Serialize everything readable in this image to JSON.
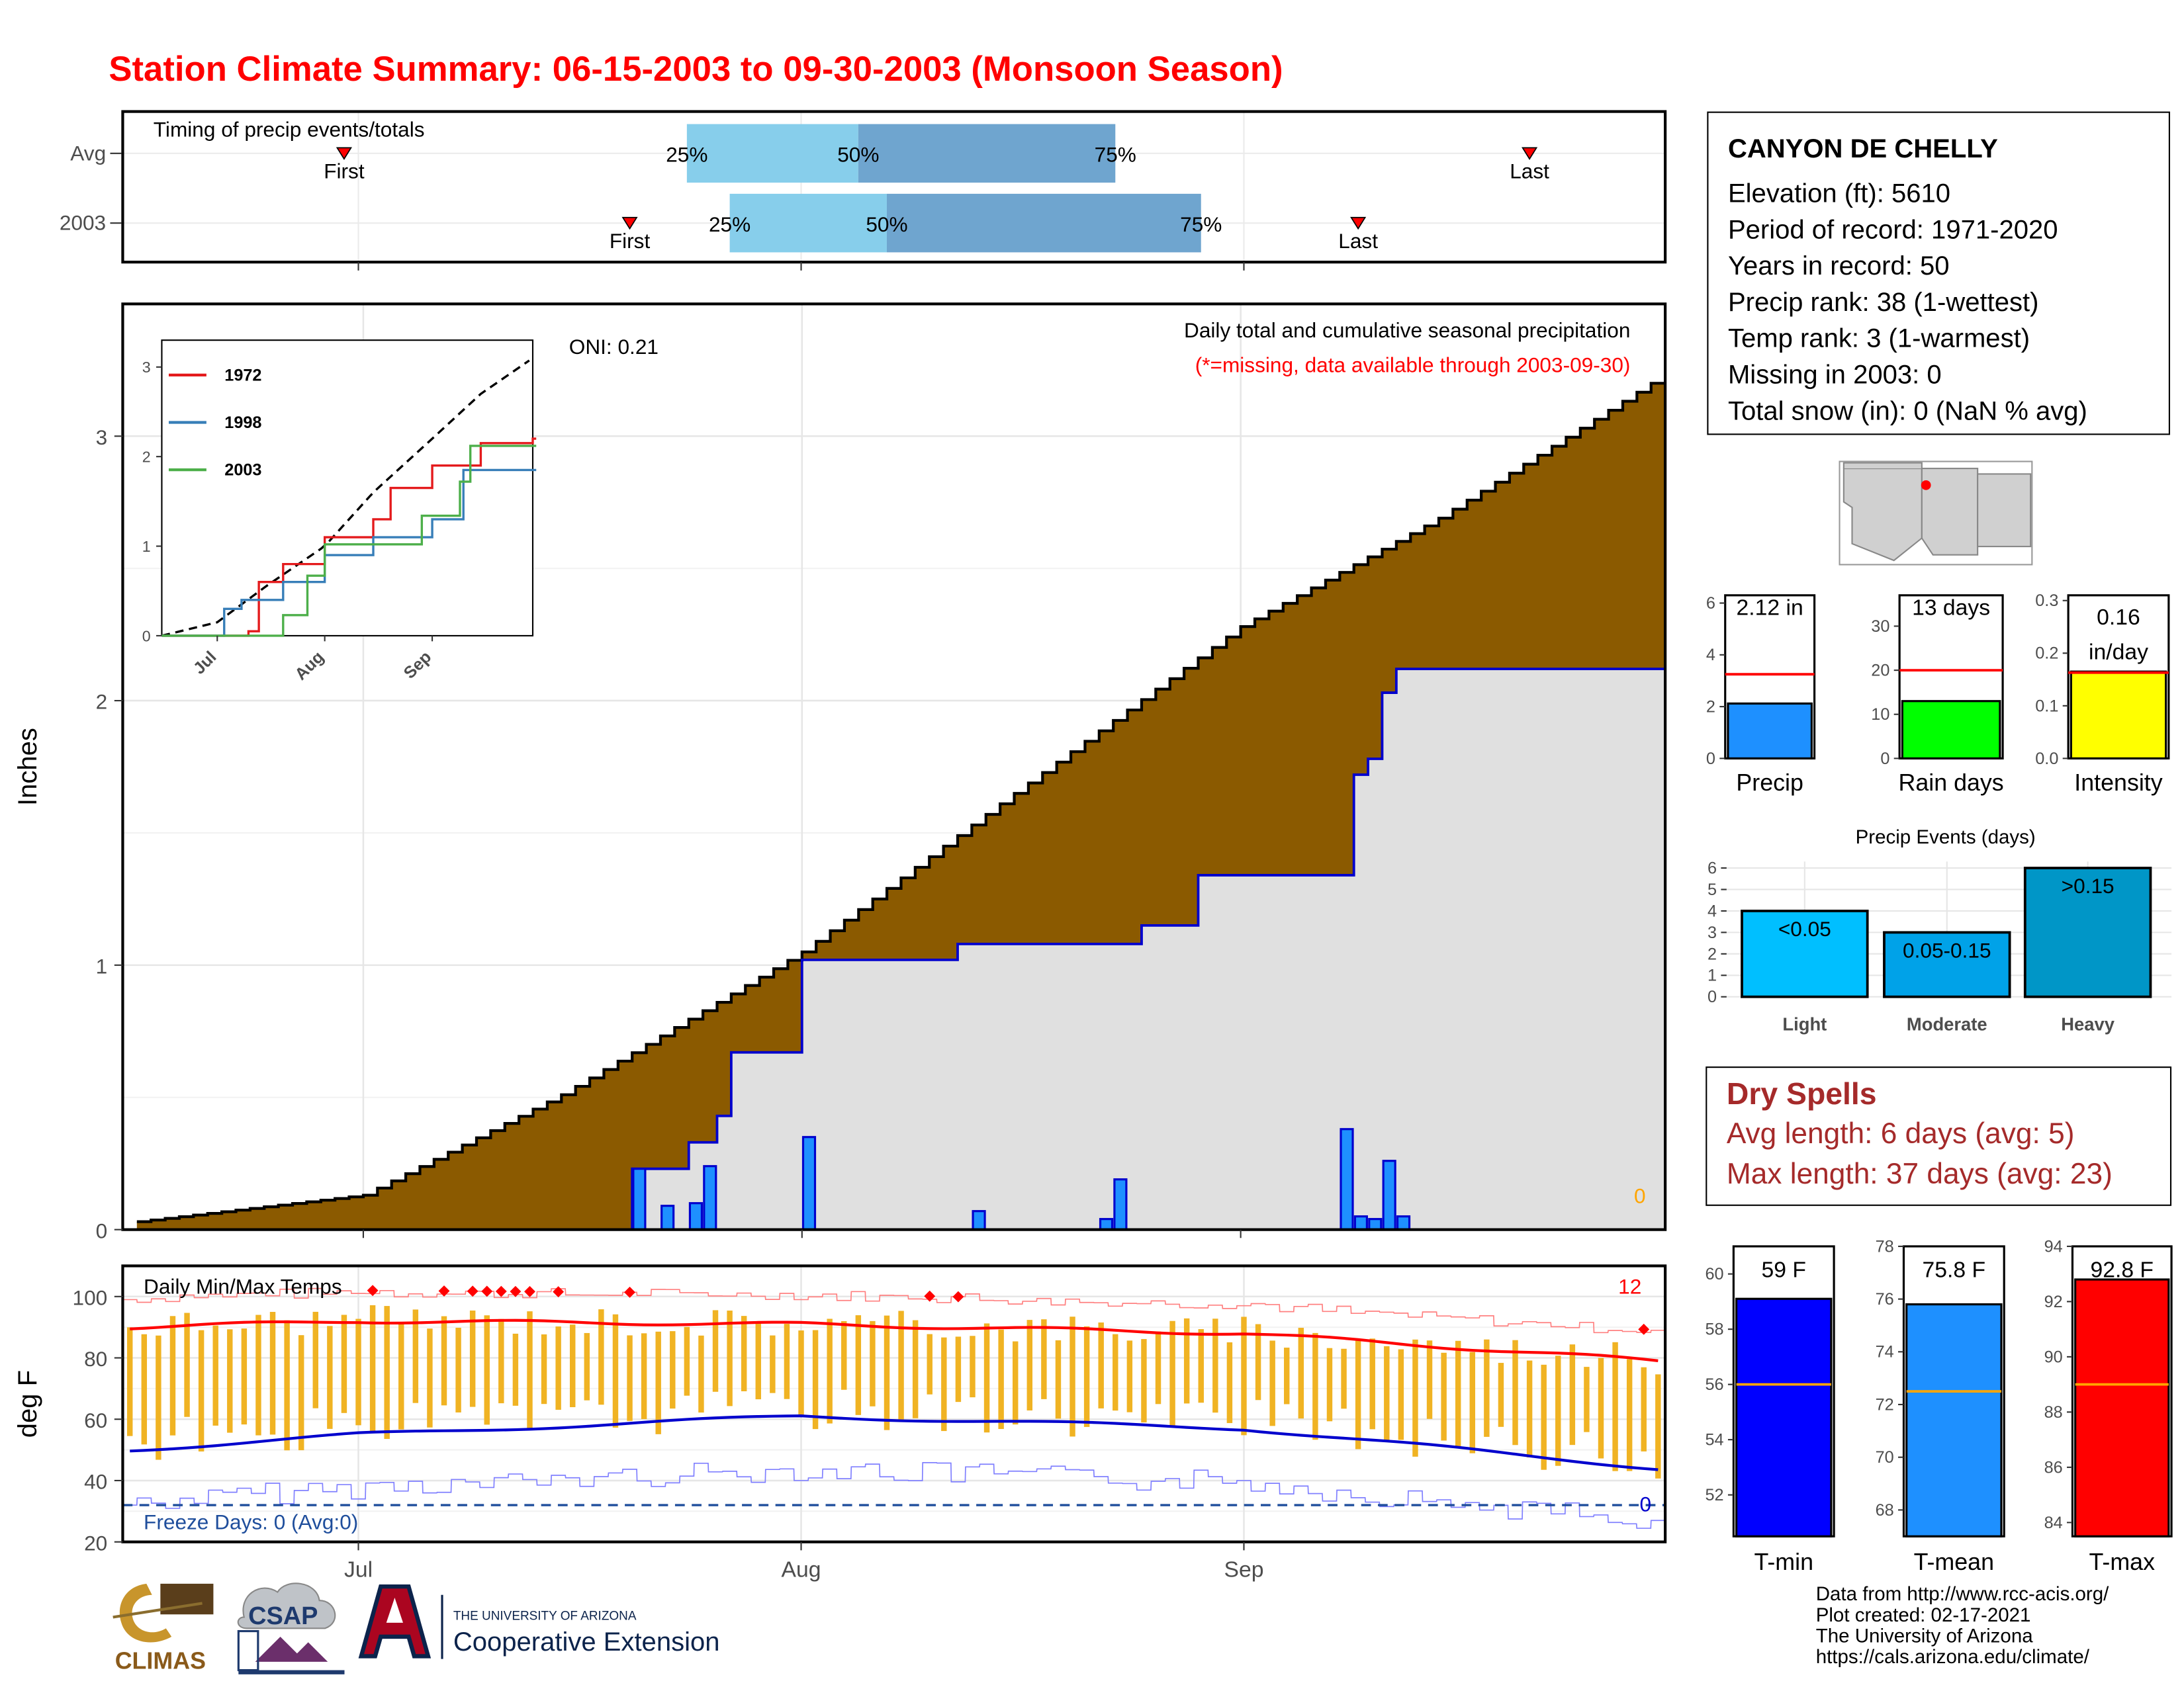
{
  "title": "Station Climate Summary: 06-15-2003 to 09-30-2003 (Monsoon Season)",
  "timing": {
    "label": "Timing of precip events/totals",
    "rows": [
      {
        "name": "Avg",
        "first": "06-30",
        "q25": "07-24",
        "q50": "08-05",
        "q75": "08-23",
        "last": "09-21"
      },
      {
        "name": "2003",
        "first": "07-20",
        "q25": "07-27",
        "q50": "08-07",
        "q75": "08-29",
        "last": "09-09"
      }
    ],
    "first_label": "First",
    "last_label": "Last",
    "q25_label": "25%",
    "q50_label": "50%",
    "q75_label": "75%",
    "colors": {
      "light": "#87ceeb",
      "dark": "#6fa5cf"
    }
  },
  "main": {
    "ylabel": "Inches",
    "oni": "ONI: 0.21",
    "caption": "Daily total and cumulative seasonal precipitation",
    "missing_note": "(*=missing, data available through 2003-09-30)",
    "missing_count": "0",
    "yticks": [
      "0",
      "1",
      "2",
      "3"
    ],
    "xticks": [
      "Jul",
      "Aug",
      "Sep"
    ]
  },
  "inset": {
    "legend": [
      "1972",
      "1998",
      "2003"
    ],
    "colors": [
      "#e41a1c",
      "#377eb8",
      "#4daf4a"
    ],
    "yticks": [
      "0",
      "1",
      "2",
      "3"
    ],
    "xticks": [
      "Jul",
      "Aug",
      "Sep"
    ]
  },
  "temps": {
    "label": "Daily Min/Max Temps",
    "ylabel": "deg F",
    "yticks": [
      "20",
      "40",
      "60",
      "80",
      "100"
    ],
    "record_count": "12",
    "freeze_label": "Freeze Days: 0 (Avg:0)",
    "freeze_count": "0"
  },
  "station": {
    "name": "CANYON DE CHELLY",
    "lines": [
      "Elevation (ft): 5610",
      "Period of record: 1971-2020",
      "Years in record: 50",
      "Precip rank: 38 (1-wettest)",
      "Temp rank: 3 (1-warmest)",
      "Missing in 2003: 0",
      "Total snow (in): 0 (NaN % avg)"
    ]
  },
  "summary_bars": [
    {
      "name": "Precip",
      "label": "2.12 in",
      "value": 2.12,
      "avg": 3.25,
      "ymax": 6.3,
      "ticks": [
        "0",
        "2",
        "4",
        "6"
      ],
      "tickvals": [
        0,
        2,
        4,
        6
      ],
      "color": "#1e90ff"
    },
    {
      "name": "Rain days",
      "label": "13 days",
      "value": 13,
      "avg": 20,
      "ymax": 37,
      "ticks": [
        "0",
        "10",
        "20",
        "30"
      ],
      "tickvals": [
        0,
        10,
        20,
        30
      ],
      "color": "#00ff00"
    },
    {
      "name": "Intensity",
      "label": "0.16",
      "label2": "in/day",
      "value": 0.165,
      "avg": 0.163,
      "ymax": 0.31,
      "ticks": [
        "0.0",
        "0.1",
        "0.2",
        "0.3"
      ],
      "tickvals": [
        0,
        0.1,
        0.2,
        0.3
      ],
      "color": "#ffff00"
    }
  ],
  "events": {
    "title": "Precip Events (days)",
    "ticks": [
      "0",
      "1",
      "2",
      "3",
      "4",
      "5",
      "6"
    ],
    "bars": [
      {
        "name": "Light",
        "label": "<0.05",
        "value": 4,
        "color": "#00bfff"
      },
      {
        "name": "Moderate",
        "label": "0.05-0.15",
        "value": 3,
        "color": "#00a2e8"
      },
      {
        "name": "Heavy",
        "label": ">0.15",
        "value": 6,
        "color": "#0096c7"
      }
    ]
  },
  "dry_spells": {
    "title": "Dry Spells",
    "avg": "Avg length: 6 days (avg: 5)",
    "max": "Max length: 37 days (avg: 23)"
  },
  "temp_bars": [
    {
      "name": "T-min",
      "label": "59 F",
      "value": 59.1,
      "avg": 56,
      "ymin": 50.5,
      "ymax": 61,
      "ticks": [
        "52",
        "54",
        "56",
        "58",
        "60"
      ],
      "tickvals": [
        52,
        54,
        56,
        58,
        60
      ],
      "color": "#0000ff"
    },
    {
      "name": "T-mean",
      "label": "75.8 F",
      "value": 75.8,
      "avg": 72.5,
      "ymin": 67,
      "ymax": 78,
      "ticks": [
        "68",
        "70",
        "72",
        "74",
        "76",
        "78"
      ],
      "tickvals": [
        68,
        70,
        72,
        74,
        76,
        78
      ],
      "color": "#1e90ff"
    },
    {
      "name": "T-max",
      "label": "92.8 F",
      "value": 92.8,
      "avg": 89,
      "ymin": 83.5,
      "ymax": 94,
      "ticks": [
        "84",
        "86",
        "88",
        "90",
        "92",
        "94"
      ],
      "tickvals": [
        84,
        86,
        88,
        90,
        92,
        94
      ],
      "color": "#ff0000"
    }
  ],
  "logos": {
    "climas": "CLIMAS",
    "csap": "CSAP",
    "ua_small": "THE UNIVERSITY OF ARIZONA",
    "ua_big": "Cooperative Extension"
  },
  "credits": [
    "Data from http://www.rcc-acis.org/",
    "Plot created: 02-17-2021",
    "The University of Arizona",
    "https://cals.arizona.edu/climate/"
  ],
  "chart_data": [
    {
      "type": "area",
      "title": "Daily total and cumulative seasonal precipitation",
      "ylabel": "Inches",
      "ylim": [
        0,
        3.5
      ],
      "x_range": [
        "2003-06-15",
        "2003-09-30"
      ],
      "series": [
        {
          "name": "Average cumulative",
          "x": [
            "06-15",
            "07-01",
            "07-15",
            "08-01",
            "08-15",
            "09-01",
            "09-15",
            "09-30"
          ],
          "y": [
            0.03,
            0.13,
            0.51,
            1.05,
            1.61,
            2.28,
            2.69,
            3.2
          ]
        },
        {
          "name": "2003 cumulative",
          "x": [
            "06-15",
            "07-20",
            "07-24",
            "07-26",
            "07-27",
            "08-01",
            "08-12",
            "08-25",
            "08-29",
            "09-09",
            "09-10",
            "09-11",
            "09-12",
            "09-30"
          ],
          "y": [
            0,
            0.23,
            0.33,
            0.43,
            0.67,
            1.02,
            1.08,
            1.15,
            1.34,
            1.72,
            1.78,
            2.03,
            2.12,
            2.12
          ]
        },
        {
          "name": "2003 daily",
          "x": [
            "07-20",
            "07-22",
            "07-24",
            "07-25",
            "08-01",
            "08-13",
            "08-22",
            "08-23",
            "09-08",
            "09-09",
            "09-10",
            "09-11",
            "09-12"
          ],
          "y": [
            0.23,
            0.09,
            0.1,
            0.24,
            0.35,
            0.07,
            0.04,
            0.19,
            0.38,
            0.05,
            0.04,
            0.26,
            0.05
          ]
        }
      ]
    },
    {
      "type": "line",
      "title": "",
      "ylim": [
        0,
        3.5
      ],
      "series": [
        {
          "name": "Average",
          "x": [
            "06-15",
            "07-01",
            "07-15",
            "08-01",
            "08-15",
            "09-01",
            "09-15",
            "09-30"
          ],
          "y": [
            0,
            0.15,
            0.55,
            1.0,
            1.6,
            2.2,
            2.7,
            3.1
          ]
        },
        {
          "name": "1972",
          "x": [
            "06-15",
            "07-10",
            "07-13",
            "07-20",
            "08-01",
            "08-15",
            "08-20",
            "09-01",
            "09-15",
            "09-30"
          ],
          "y": [
            0,
            0.05,
            0.6,
            0.8,
            1.1,
            1.3,
            1.65,
            1.9,
            2.15,
            2.2
          ]
        },
        {
          "name": "1998",
          "x": [
            "06-15",
            "07-03",
            "07-08",
            "07-20",
            "08-01",
            "08-15",
            "09-01",
            "09-10",
            "09-30"
          ],
          "y": [
            0,
            0.3,
            0.4,
            0.6,
            0.9,
            1.1,
            1.3,
            1.85,
            1.85
          ]
        },
        {
          "name": "2003",
          "x": [
            "06-15",
            "07-20",
            "07-27",
            "08-01",
            "08-29",
            "09-09",
            "09-12",
            "09-30"
          ],
          "y": [
            0,
            0.23,
            0.67,
            1.02,
            1.34,
            1.72,
            2.12,
            2.12
          ]
        }
      ]
    },
    {
      "type": "line",
      "title": "Daily Min/Max Temps",
      "ylabel": "deg F",
      "ylim": [
        20,
        110
      ],
      "series": [
        {
          "name": "Average max",
          "x": [
            "06-15",
            "07-01",
            "08-01",
            "09-01",
            "09-30"
          ],
          "y": [
            90,
            92,
            91,
            88,
            79
          ]
        },
        {
          "name": "Average min",
          "x": [
            "06-15",
            "07-01",
            "08-01",
            "09-01",
            "09-30"
          ],
          "y": [
            50,
            55,
            61,
            57,
            44
          ]
        },
        {
          "name": "Freeze threshold",
          "x": [
            "06-15",
            "09-30"
          ],
          "y": [
            32,
            32
          ]
        }
      ]
    }
  ]
}
